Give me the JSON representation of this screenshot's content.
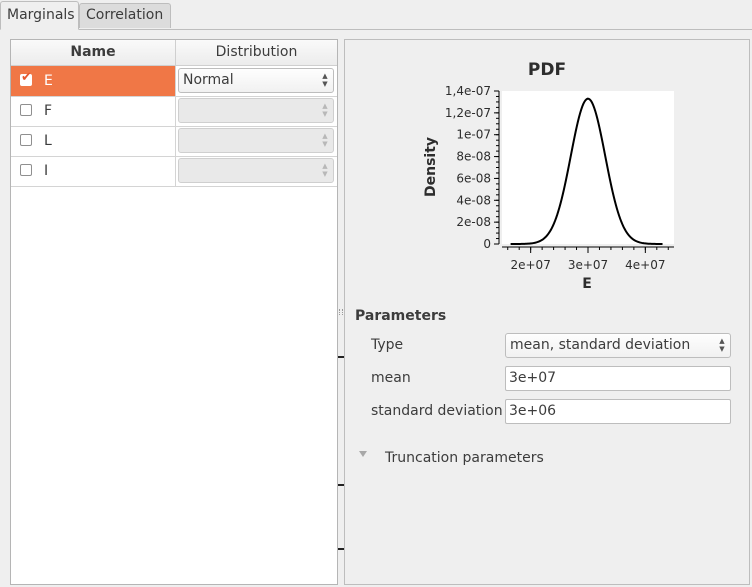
{
  "tabs": [
    {
      "label": "Marginals",
      "active": true
    },
    {
      "label": "Correlation",
      "active": false
    }
  ],
  "table": {
    "headers": {
      "name": "Name",
      "distribution": "Distribution"
    },
    "rows": [
      {
        "name": "E",
        "checked": true,
        "distribution": "Normal",
        "selected": true
      },
      {
        "name": "F",
        "checked": false,
        "distribution": "",
        "selected": false
      },
      {
        "name": "L",
        "checked": false,
        "distribution": "",
        "selected": false
      },
      {
        "name": "I",
        "checked": false,
        "distribution": "",
        "selected": false
      }
    ]
  },
  "chart_data": {
    "type": "line",
    "title": "PDF",
    "xlabel": "E",
    "ylabel": "Density",
    "x_ticks": [
      "2e+07",
      "3e+07",
      "4e+07"
    ],
    "y_ticks": [
      "0",
      "2e-08",
      "4e-08",
      "6e-08",
      "8e-08",
      "1e-07",
      "1,2e-07",
      "1,4e-07"
    ],
    "xlim": [
      15000000,
      45000000
    ],
    "ylim": [
      0,
      1.4e-07
    ],
    "series": [
      {
        "distribution": "Normal",
        "mean": 30000000,
        "std": 3000000
      }
    ],
    "grid": false
  },
  "parameters": {
    "title": "Parameters",
    "type_label": "Type",
    "type_value": "mean, standard deviation",
    "mean_label": "mean",
    "mean_value": "3e+07",
    "std_label": "standard deviation",
    "std_value": "3e+06"
  },
  "truncation": {
    "label": "Truncation parameters"
  },
  "colors": {
    "selection": "#f07746",
    "curve": "#000000"
  }
}
